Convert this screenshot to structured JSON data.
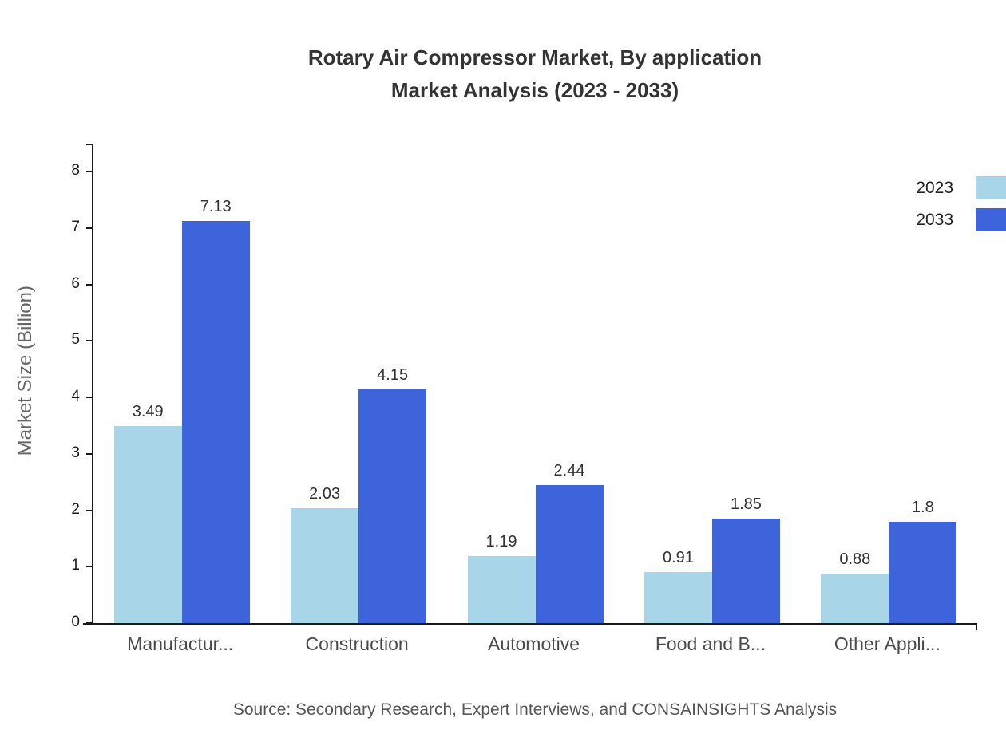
{
  "title": {
    "line1": "Rotary Air Compressor Market, By application",
    "line2": "Market Analysis (2023 - 2033)"
  },
  "ylabel": "Market Size (Billion)",
  "source": "Source: Secondary Research, Expert Interviews, and CONSAINSIGHTS Analysis",
  "legend": [
    {
      "label": "2023",
      "color": "#A8D6E8"
    },
    {
      "label": "2033",
      "color": "#3D64DB"
    }
  ],
  "chart_data": {
    "type": "bar",
    "title": "Rotary Air Compressor Market, By application Market Analysis (2023 - 2033)",
    "categories": [
      "Manufactur...",
      "Construction",
      "Automotive",
      "Food and B...",
      "Other Appli..."
    ],
    "series": [
      {
        "name": "2023",
        "color": "#A8D6E8",
        "values": [
          3.49,
          2.03,
          1.19,
          0.91,
          0.88
        ]
      },
      {
        "name": "2033",
        "color": "#3D64DB",
        "values": [
          7.13,
          4.15,
          2.44,
          1.85,
          1.8
        ]
      }
    ],
    "xlabel": "",
    "ylabel": "Market Size (Billion)",
    "ylim": [
      0,
      8.5
    ],
    "yticks": [
      0,
      1,
      2,
      3,
      4,
      5,
      6,
      7,
      8
    ],
    "grid": false,
    "legend_position": "top-right"
  }
}
